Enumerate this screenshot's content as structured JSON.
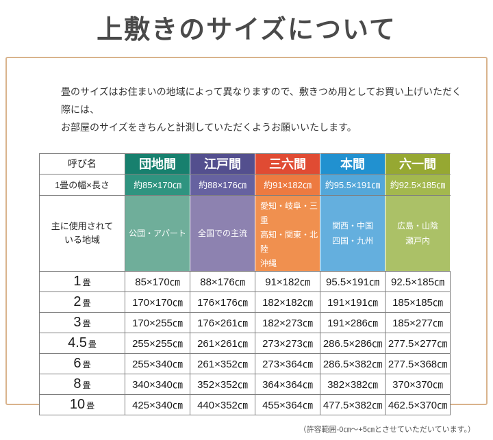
{
  "page": {
    "title": "上敷きのサイズについて"
  },
  "intro": {
    "line1": "畳のサイズはお住まいの地域によって異なりますので、敷きつめ用としてお買い上げいただく際には、",
    "line2": "お部屋のサイズをきちんと計測していただくようお願いいたします。"
  },
  "colors": {
    "panel_border": "#d9b38c",
    "table_border": "#7d7d7d",
    "title_text": "#4a4a4a"
  },
  "table": {
    "corner_label": "呼び名",
    "columns": [
      {
        "name": "団地間",
        "header_color": "#17806E",
        "size_color": "#2F9480",
        "region_color": "#6FAE9A"
      },
      {
        "name": "江戸間",
        "header_color": "#534F8E",
        "size_color": "#6662A0",
        "region_color": "#8D82B0"
      },
      {
        "name": "三六間",
        "header_color": "#E04B33",
        "size_color": "#ED7A40",
        "region_color": "#F0904F"
      },
      {
        "name": "本間",
        "header_color": "#2191D0",
        "size_color": "#54A7D9",
        "region_color": "#64AFDE"
      },
      {
        "name": "六一間",
        "header_color": "#96A832",
        "size_color": "#A3B84E",
        "region_color": "#ABC167"
      }
    ],
    "size_row": {
      "label": "1畳の幅×長さ",
      "values": [
        "約85×170㎝",
        "約88×176㎝",
        "約91×182㎝",
        "約95.5×191㎝",
        "約92.5×185㎝"
      ]
    },
    "region_row": {
      "label_line1": "主に使用されて",
      "label_line2": "いる地域",
      "values": [
        [
          "公団・アパート"
        ],
        [
          "全国での主流"
        ],
        [
          "愛知・岐阜・三重",
          "高知・関東・北陸",
          "沖縄"
        ],
        [
          "関西・中国",
          "四国・九州"
        ],
        [
          "広島・山陰",
          "瀬戸内"
        ]
      ]
    },
    "rows": [
      {
        "num": "1",
        "unit": "畳",
        "cells": [
          "85×170㎝",
          "88×176㎝",
          "91×182㎝",
          "95.5×191㎝",
          "92.5×185㎝"
        ]
      },
      {
        "num": "2",
        "unit": "畳",
        "cells": [
          "170×170㎝",
          "176×176㎝",
          "182×182㎝",
          "191×191㎝",
          "185×185㎝"
        ]
      },
      {
        "num": "3",
        "unit": "畳",
        "cells": [
          "170×255㎝",
          "176×261㎝",
          "182×273㎝",
          "191×286㎝",
          "185×277㎝"
        ]
      },
      {
        "num": "4.5",
        "unit": "畳",
        "cells": [
          "255×255㎝",
          "261×261㎝",
          "273×273㎝",
          "286.5×286㎝",
          "277.5×277㎝"
        ]
      },
      {
        "num": "6",
        "unit": "畳",
        "cells": [
          "255×340㎝",
          "261×352㎝",
          "273×364㎝",
          "286.5×382㎝",
          "277.5×368㎝"
        ]
      },
      {
        "num": "8",
        "unit": "畳",
        "cells": [
          "340×340㎝",
          "352×352㎝",
          "364×364㎝",
          "382×382㎝",
          "370×370㎝"
        ]
      },
      {
        "num": "10",
        "unit": "畳",
        "cells": [
          "425×340㎝",
          "440×352㎝",
          "455×364㎝",
          "477.5×382㎝",
          "462.5×370㎝"
        ]
      }
    ]
  },
  "footer": {
    "note": "（許容範囲-0㎝～+5㎝とさせていただいています。）"
  }
}
